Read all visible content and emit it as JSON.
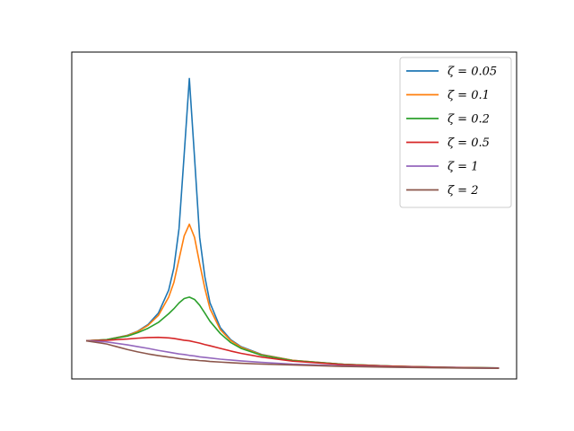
{
  "chart_data": {
    "type": "line",
    "title": "",
    "xlabel": "",
    "ylabel": "",
    "xlim": [
      0,
      4.1
    ],
    "ylim": [
      0,
      10.6
    ],
    "grid": false,
    "legend": {
      "placement": "top-right"
    },
    "x": [
      0.0,
      0.2,
      0.4,
      0.5,
      0.6,
      0.7,
      0.8,
      0.85,
      0.9,
      0.95,
      1.0,
      1.05,
      1.1,
      1.15,
      1.2,
      1.3,
      1.4,
      1.5,
      1.7,
      2.0,
      2.5,
      3.0,
      3.5,
      4.0
    ],
    "series": [
      {
        "name": "ζ = 0.05",
        "color": "#1f77b4",
        "values": [
          1.0,
          1.04,
          1.19,
          1.33,
          1.56,
          1.95,
          2.74,
          3.5,
          4.85,
          7.4,
          10.0,
          7.3,
          4.55,
          3.2,
          2.3,
          1.45,
          1.04,
          0.8,
          0.53,
          0.33,
          0.19,
          0.125,
          0.089,
          0.067
        ]
      },
      {
        "name": "ζ = 0.1",
        "color": "#ff7f0e",
        "values": [
          1.0,
          1.04,
          1.18,
          1.32,
          1.53,
          1.87,
          2.5,
          3.0,
          3.8,
          4.6,
          5.0,
          4.55,
          3.65,
          2.8,
          2.1,
          1.38,
          1.01,
          0.78,
          0.52,
          0.33,
          0.19,
          0.125,
          0.088,
          0.067
        ]
      },
      {
        "name": "ζ = 0.2",
        "color": "#2ca02c",
        "values": [
          1.0,
          1.04,
          1.16,
          1.28,
          1.43,
          1.63,
          1.93,
          2.1,
          2.3,
          2.45,
          2.5,
          2.42,
          2.22,
          1.95,
          1.67,
          1.25,
          0.94,
          0.74,
          0.5,
          0.32,
          0.19,
          0.124,
          0.088,
          0.066
        ]
      },
      {
        "name": "ζ = 0.5",
        "color": "#d62728",
        "values": [
          1.0,
          1.02,
          1.06,
          1.09,
          1.11,
          1.12,
          1.1,
          1.08,
          1.05,
          1.02,
          1.0,
          0.96,
          0.92,
          0.87,
          0.83,
          0.74,
          0.65,
          0.57,
          0.44,
          0.3,
          0.18,
          0.12,
          0.086,
          0.065
        ]
      },
      {
        "name": "ζ = 1",
        "color": "#9467bd",
        "values": [
          1.0,
          0.96,
          0.86,
          0.8,
          0.74,
          0.67,
          0.61,
          0.58,
          0.55,
          0.53,
          0.5,
          0.48,
          0.45,
          0.43,
          0.41,
          0.37,
          0.34,
          0.31,
          0.26,
          0.2,
          0.14,
          0.1,
          0.075,
          0.059
        ]
      },
      {
        "name": "ζ = 2",
        "color": "#8c564b",
        "values": [
          1.0,
          0.89,
          0.7,
          0.62,
          0.55,
          0.49,
          0.44,
          0.42,
          0.39,
          0.37,
          0.35,
          0.34,
          0.32,
          0.31,
          0.29,
          0.27,
          0.25,
          0.23,
          0.2,
          0.17,
          0.12,
          0.09,
          0.07,
          0.055
        ]
      }
    ]
  }
}
